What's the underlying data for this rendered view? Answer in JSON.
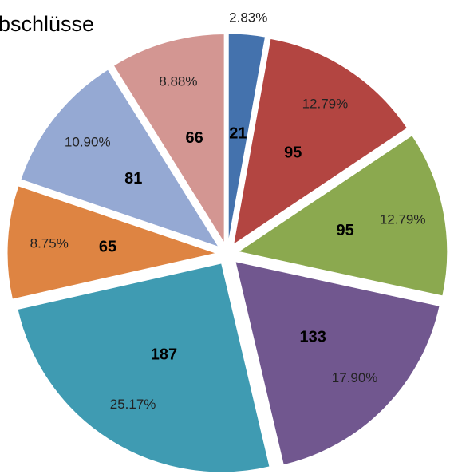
{
  "chart_data": {
    "type": "pie",
    "title": "bschlüsse",
    "categories": [
      null,
      null,
      null,
      null,
      null,
      null,
      null,
      null
    ],
    "values": [
      21,
      95,
      95,
      133,
      187,
      65,
      81,
      66
    ],
    "percent_labels": [
      "2.83%",
      "12.79%",
      "12.79%",
      "17.90%",
      "25.17%",
      "8.75%",
      "10.90%",
      "8.88%"
    ],
    "colors": [
      "#4472ad",
      "#b34541",
      "#8ba94f",
      "#71578f",
      "#3f9bb2",
      "#de8442",
      "#95a9d3",
      "#d39692"
    ],
    "exploded": true
  }
}
